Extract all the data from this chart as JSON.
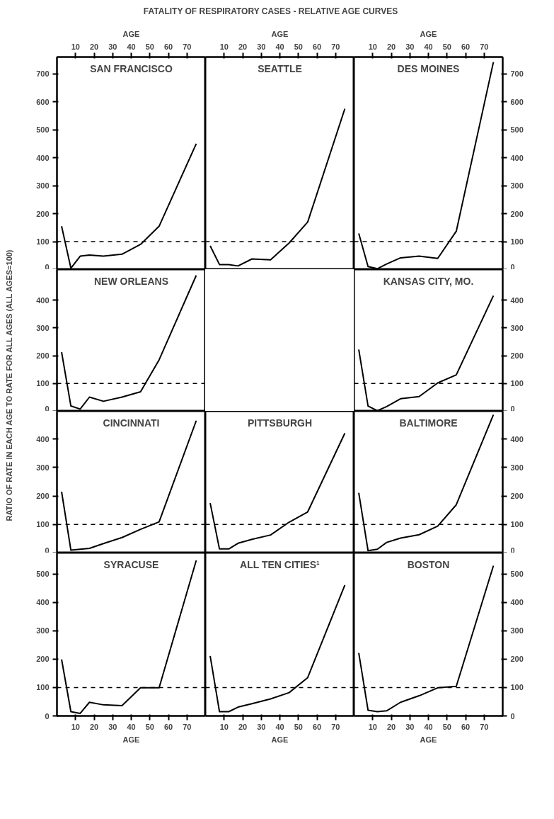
{
  "chart_data": [
    {
      "type": "line",
      "title": "SAN FRANCISCO",
      "annotations": [
        "FATALITY OF RESPIRATORY CASES - RELATIVE AGE CURVES"
      ],
      "ylabel": "RATIO OF RATE IN EACH AGE TO RATE FOR ALL AGES (ALL AGES=100)",
      "xlabel": "AGE",
      "x": [
        2.5,
        7.5,
        12.5,
        17.5,
        25,
        35,
        45,
        55,
        75
      ],
      "xlim": [
        0,
        80
      ],
      "xticks": [
        10,
        20,
        30,
        40,
        50,
        60,
        70
      ],
      "ylim": [
        0,
        760
      ],
      "yticks": [
        0,
        100,
        200,
        300,
        400,
        500,
        600,
        700
      ],
      "ref_lines": [
        {
          "axis": "y",
          "value": 100,
          "line_style": "dashed",
          "color": "#000000"
        }
      ],
      "series": [
        {
          "color": "#000000",
          "values": [
            155,
            5,
            48,
            52,
            48,
            55,
            90,
            155,
            450
          ]
        }
      ]
    },
    {
      "type": "line",
      "title": "SEATTLE",
      "xlabel": "AGE",
      "tick_labels": "x",
      "x": [
        2.5,
        7.5,
        12.5,
        17.5,
        25,
        35,
        45,
        55,
        75
      ],
      "xlim": [
        0,
        80
      ],
      "xticks": [
        10,
        20,
        30,
        40,
        50,
        60,
        70
      ],
      "ylim": [
        0,
        760
      ],
      "yticks": [
        0,
        100,
        200,
        300,
        400,
        500,
        600,
        700
      ],
      "ref_lines": [
        {
          "axis": "y",
          "value": 100,
          "line_style": "dashed",
          "color": "#000000"
        }
      ],
      "series": [
        {
          "color": "#000000",
          "values": [
            85,
            18,
            18,
            13,
            38,
            35,
            95,
            170,
            575
          ]
        }
      ]
    },
    {
      "type": "line",
      "title": "DES MOINES",
      "xlabel": "AGE",
      "x": [
        2.5,
        7.5,
        12.5,
        17.5,
        25,
        35,
        45,
        55,
        75
      ],
      "xlim": [
        0,
        80
      ],
      "xticks": [
        10,
        20,
        30,
        40,
        50,
        60,
        70
      ],
      "ylim": [
        0,
        760
      ],
      "yticks": [
        0,
        100,
        200,
        300,
        400,
        500,
        600,
        700
      ],
      "ref_lines": [
        {
          "axis": "y",
          "value": 100,
          "line_style": "dashed",
          "color": "#000000"
        }
      ],
      "series": [
        {
          "color": "#000000",
          "values": [
            129,
            11,
            3,
            20,
            42,
            48,
            40,
            137,
            742
          ]
        }
      ]
    },
    {
      "type": "line",
      "title": "NEW ORLEANS",
      "tick_labels": "y",
      "x": [
        2.5,
        7.5,
        12.5,
        17.5,
        25,
        35,
        45,
        55,
        75
      ],
      "xlim": [
        0,
        80
      ],
      "ylim": [
        0,
        510
      ],
      "yticks": [
        0,
        100,
        200,
        300,
        400
      ],
      "ref_lines": [
        {
          "axis": "y",
          "value": 100,
          "line_style": "dashed",
          "color": "#000000"
        }
      ],
      "series": [
        {
          "color": "#000000",
          "values": [
            213,
            19,
            8,
            51,
            36,
            51,
            70,
            185,
            489
          ]
        }
      ]
    },
    {
      "type": "line",
      "title": "KANSAS CITY, MO.",
      "tick_labels": "y",
      "x": [
        2.5,
        7.5,
        12.5,
        17.5,
        25,
        35,
        45,
        55,
        75
      ],
      "xlim": [
        0,
        80
      ],
      "ylim": [
        0,
        510
      ],
      "yticks": [
        0,
        100,
        200,
        300,
        400
      ],
      "ref_lines": [
        {
          "axis": "y",
          "value": 100,
          "line_style": "dashed",
          "color": "#000000"
        }
      ],
      "series": [
        {
          "color": "#000000",
          "values": [
            222,
            19,
            2,
            17,
            45,
            53,
            102,
            131,
            416
          ]
        }
      ]
    },
    {
      "type": "line",
      "title": "CINCINNATI",
      "tick_labels": "y",
      "x": [
        2.5,
        7.5,
        12.5,
        17.5,
        25,
        35,
        45,
        55,
        75
      ],
      "xlim": [
        0,
        80
      ],
      "ylim": [
        0,
        497
      ],
      "yticks": [
        0,
        100,
        200,
        300,
        400
      ],
      "ref_lines": [
        {
          "axis": "y",
          "value": 100,
          "line_style": "dashed",
          "color": "#000000"
        }
      ],
      "series": [
        {
          "color": "#000000",
          "values": [
            215,
            10,
            13,
            16,
            33,
            54,
            83,
            109,
            464
          ]
        }
      ]
    },
    {
      "type": "line",
      "title": "PITTSBURGH",
      "tick_labels": false,
      "x": [
        2.5,
        7.5,
        12.5,
        17.5,
        25,
        35,
        45,
        55,
        75
      ],
      "xlim": [
        0,
        80
      ],
      "ylim": [
        0,
        497
      ],
      "yticks": [
        0,
        100,
        200,
        300,
        400
      ],
      "ref_lines": [
        {
          "axis": "y",
          "value": 100,
          "line_style": "dashed",
          "color": "#000000"
        }
      ],
      "series": [
        {
          "color": "#000000",
          "values": [
            175,
            14,
            14,
            34,
            48,
            63,
            108,
            144,
            420
          ]
        }
      ]
    },
    {
      "type": "line",
      "title": "BALTIMORE",
      "tick_labels": "y",
      "x": [
        2.5,
        7.5,
        12.5,
        17.5,
        25,
        35,
        45,
        55,
        75
      ],
      "xlim": [
        0,
        80
      ],
      "ylim": [
        0,
        497
      ],
      "yticks": [
        0,
        100,
        200,
        300,
        400
      ],
      "ref_lines": [
        {
          "axis": "y",
          "value": 100,
          "line_style": "dashed",
          "color": "#000000"
        }
      ],
      "series": [
        {
          "color": "#000000",
          "values": [
            211,
            8,
            13,
            37,
            52,
            64,
            94,
            169,
            485
          ]
        }
      ]
    },
    {
      "type": "line",
      "title": "SYRACUSE",
      "xlabel": "AGE",
      "x": [
        2.5,
        7.5,
        12.5,
        17.5,
        25,
        35,
        45,
        55,
        75
      ],
      "xlim": [
        0,
        80
      ],
      "xticks": [
        10,
        20,
        30,
        40,
        50,
        60,
        70
      ],
      "ylim": [
        0,
        574
      ],
      "yticks": [
        0,
        100,
        200,
        300,
        400,
        500
      ],
      "ref_lines": [
        {
          "axis": "y",
          "value": 100,
          "line_style": "dashed",
          "color": "#000000"
        }
      ],
      "series": [
        {
          "color": "#000000",
          "values": [
            199,
            15,
            9,
            48,
            39,
            36,
            99,
            99,
            548
          ]
        }
      ]
    },
    {
      "type": "line",
      "title": "ALL TEN CITIES¹",
      "xlabel": "AGE",
      "tick_labels": "x",
      "x": [
        2.5,
        7.5,
        12.5,
        17.5,
        25,
        35,
        45,
        55,
        75
      ],
      "xlim": [
        0,
        80
      ],
      "xticks": [
        10,
        20,
        30,
        40,
        50,
        60,
        70
      ],
      "ylim": [
        0,
        574
      ],
      "yticks": [
        0,
        100,
        200,
        300,
        400,
        500
      ],
      "ref_lines": [
        {
          "axis": "y",
          "value": 100,
          "line_style": "dashed",
          "color": "#000000"
        }
      ],
      "series": [
        {
          "color": "#000000",
          "values": [
            211,
            15,
            15,
            31,
            43,
            60,
            82,
            135,
            461
          ]
        }
      ]
    },
    {
      "type": "line",
      "title": "BOSTON",
      "xlabel": "AGE",
      "x": [
        2.5,
        7.5,
        12.5,
        17.5,
        25,
        35,
        45,
        55,
        75
      ],
      "xlim": [
        0,
        80
      ],
      "xticks": [
        10,
        20,
        30,
        40,
        50,
        60,
        70
      ],
      "ylim": [
        0,
        574
      ],
      "yticks": [
        0,
        100,
        200,
        300,
        400,
        500
      ],
      "ref_lines": [
        {
          "axis": "y",
          "value": 100,
          "line_style": "dashed",
          "color": "#000000"
        }
      ],
      "series": [
        {
          "color": "#000000",
          "values": [
            222,
            20,
            15,
            18,
            48,
            71,
            99,
            104,
            529
          ]
        }
      ]
    }
  ]
}
